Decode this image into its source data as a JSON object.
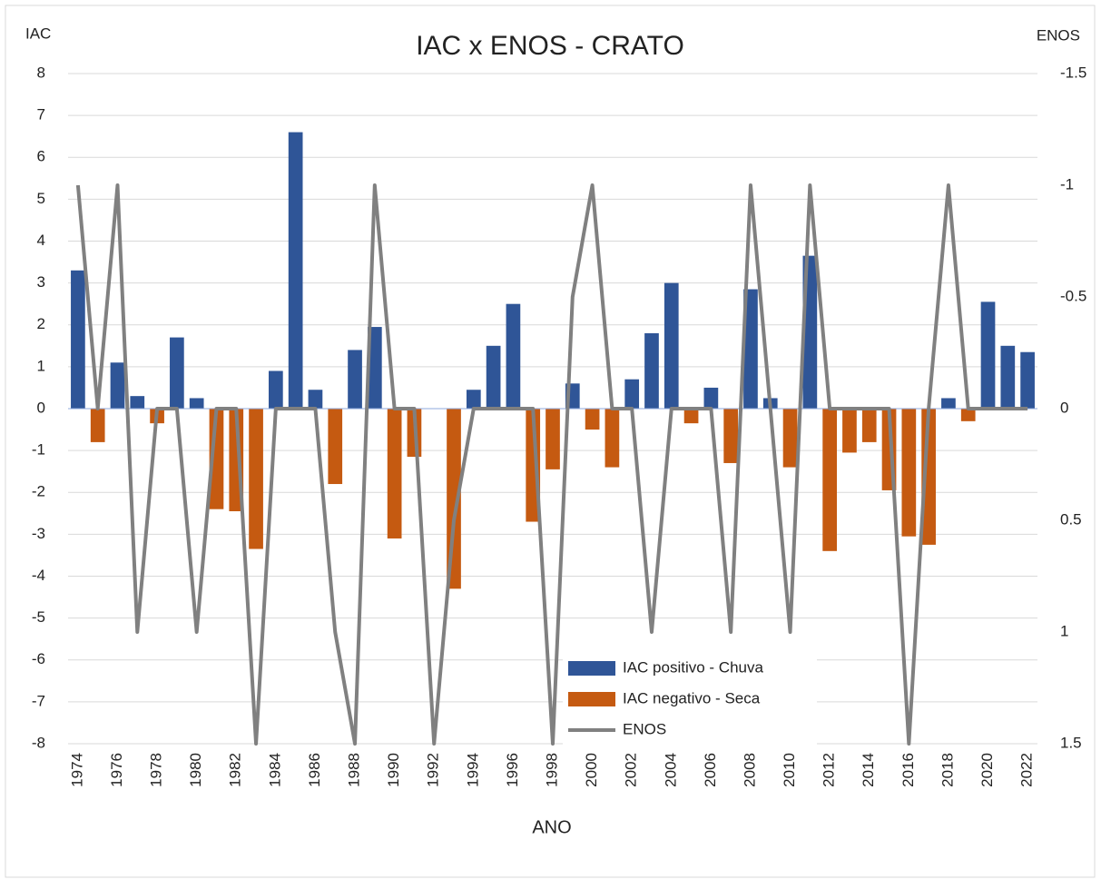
{
  "chart_data": {
    "type": "bar",
    "title": "IAC x ENOS - CRATO",
    "y_label": "IAC",
    "y2_label": "ENOS",
    "x_label": "ANO",
    "categories": [
      "1974",
      null,
      "1976",
      null,
      "1978",
      null,
      "1980",
      null,
      "1982",
      null,
      "1984",
      null,
      "1986",
      null,
      "1988",
      null,
      "1990",
      null,
      "1992",
      null,
      "1994",
      null,
      "1996",
      null,
      "1998",
      null,
      "2000",
      null,
      "2002",
      null,
      "2004",
      null,
      "2006",
      null,
      "2008",
      null,
      "2010",
      null,
      "2012",
      null,
      "2014",
      null,
      "2016",
      null,
      "2018",
      null,
      "2020",
      null,
      "2022"
    ],
    "series": [
      {
        "name": "IAC positivo - Chuva",
        "type": "bar",
        "color": "#2f5597",
        "values": [
          3.3,
          null,
          1.1,
          0.3,
          null,
          1.7,
          0.25,
          null,
          null,
          null,
          0.9,
          6.6,
          0.45,
          null,
          1.4,
          1.95,
          null,
          null,
          null,
          null,
          0.45,
          1.5,
          2.5,
          null,
          null,
          0.6,
          null,
          null,
          0.7,
          1.8,
          3.0,
          null,
          0.5,
          null,
          2.85,
          0.25,
          null,
          3.65,
          null,
          null,
          null,
          null,
          null,
          null,
          0.25,
          null,
          2.55,
          1.5,
          1.35
        ]
      },
      {
        "name": "IAC negativo - Seca",
        "type": "bar",
        "color": "#c55a11",
        "values": [
          null,
          -0.8,
          null,
          null,
          -0.35,
          null,
          null,
          -2.4,
          -2.45,
          -3.35,
          null,
          null,
          null,
          -1.8,
          null,
          null,
          -3.1,
          -1.15,
          null,
          -4.3,
          null,
          null,
          null,
          -2.7,
          -1.45,
          null,
          -0.5,
          -1.4,
          null,
          null,
          null,
          -0.35,
          null,
          -1.3,
          null,
          null,
          -1.4,
          null,
          -3.4,
          -1.05,
          -0.8,
          -1.95,
          -3.05,
          -3.25,
          null,
          -0.3,
          null,
          null,
          null
        ]
      },
      {
        "name": "ENOS",
        "type": "line",
        "axis": "y2",
        "color": "#808080",
        "values": [
          -1,
          0,
          -1,
          1,
          0,
          0,
          1,
          0,
          0,
          1.5,
          0,
          0,
          0,
          1,
          1.5,
          -1,
          0,
          0,
          1.5,
          0.5,
          0,
          0,
          0,
          0,
          1.5,
          -0.5,
          -1,
          0,
          0,
          1,
          0,
          0,
          0,
          1,
          -1,
          0,
          1,
          -1,
          0,
          0,
          0,
          0,
          1.5,
          0,
          -1,
          0,
          0,
          0,
          0
        ]
      }
    ],
    "ylim": [
      -8,
      8
    ],
    "yticks": [
      -8,
      -7,
      -6,
      -5,
      -4,
      -3,
      -2,
      -1,
      0,
      1,
      2,
      3,
      4,
      5,
      6,
      7,
      8
    ],
    "y2lim": [
      1.5,
      -1.5
    ],
    "y2ticks": [
      -1.5,
      -1,
      -0.5,
      0,
      0.5,
      1,
      1.5
    ],
    "grid": true
  }
}
